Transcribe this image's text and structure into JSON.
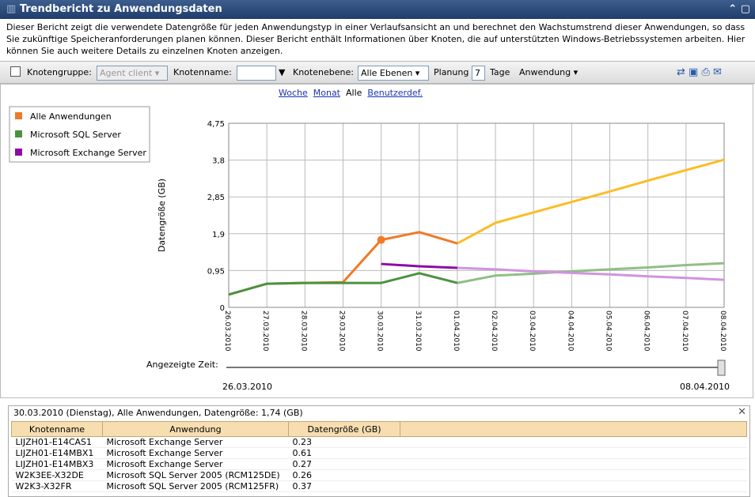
{
  "header": {
    "title": "Trendbericht zu Anwendungsdaten"
  },
  "description": "Dieser Bericht zeigt die verwendete Datengröße für jeden Anwendungstyp in einer Verlaufsansicht an und berechnet den Wachstumstrend dieser Anwendungen, so dass Sie zukünftige  Speicheranforderungen planen können. Dieser Bericht enthält Informationen über Knoten, die auf unterstützten Windows-Betriebssystemen arbeiten. Hier können Sie auch weitere Details zu einzelnen Knoten anzeigen.",
  "toolbar": {
    "group_label": "Knotengruppe:",
    "group_value": "Agent client",
    "node_label": "Knotenname:",
    "level_label": "Knotenebene:",
    "level_value": "Alle Ebenen",
    "planning_label": "Planung",
    "planning_value": "7",
    "days_label": "Tage",
    "application_menu": "Anwendung"
  },
  "range_links": [
    "Woche",
    "Monat",
    "Alle",
    "Benutzerdef."
  ],
  "chart": {
    "type": "line",
    "y_label": "Datengröße (GB)",
    "categories": [
      "26.03.2010",
      "27.03.2010",
      "28.03.2010",
      "29.03.2010",
      "30.03.2010",
      "31.03.2010",
      "01.04.2010",
      "02.04.2010",
      "03.04.2010",
      "04.04.2010",
      "05.04.2010",
      "06.04.2010",
      "07.04.2010",
      "08.04.2010"
    ],
    "series": [
      {
        "name": "Alle Anwendungen",
        "color": "#f07a28",
        "trend_color": "#fbbd26",
        "values": [
          0.33,
          0.61,
          0.63,
          0.65,
          1.74,
          1.94,
          1.65,
          null,
          null,
          null,
          null,
          null,
          null,
          null
        ],
        "trend": [
          null,
          null,
          null,
          null,
          null,
          null,
          1.65,
          2.18,
          2.45,
          2.72,
          2.99,
          3.27,
          3.54,
          3.81
        ]
      },
      {
        "name": "Microsoft SQL Server",
        "color": "#4a9340",
        "trend_color": "#8fbf85",
        "values": [
          0.33,
          0.61,
          0.63,
          0.63,
          0.63,
          0.88,
          0.63,
          null,
          null,
          null,
          null,
          null,
          null,
          null
        ],
        "trend": [
          null,
          null,
          null,
          null,
          null,
          null,
          0.63,
          0.82,
          0.87,
          0.93,
          0.98,
          1.03,
          1.09,
          1.14
        ]
      },
      {
        "name": "Microsoft Exchange Server",
        "color": "#8e0aa8",
        "trend_color": "#d193e0",
        "values": [
          null,
          null,
          null,
          null,
          1.12,
          1.06,
          1.02,
          null,
          null,
          null,
          null,
          null,
          null,
          null
        ],
        "trend": [
          null,
          null,
          null,
          null,
          null,
          null,
          1.02,
          0.98,
          0.93,
          0.89,
          0.85,
          0.8,
          0.76,
          0.71
        ]
      }
    ],
    "marker": {
      "series": 0,
      "index": 4
    },
    "ylim": [
      0,
      4.75
    ],
    "yticks": [
      0,
      {
        "value": 0.95,
        "label": "0,95"
      },
      {
        "value": 1.9,
        "label": "1,9"
      },
      {
        "value": 2.85,
        "label": "2,85"
      },
      {
        "value": 3.8,
        "label": "3,8"
      },
      {
        "value": 4.75,
        "label": "4,75"
      }
    ],
    "grid": true
  },
  "slider": {
    "label": "Angezeigte Zeit:",
    "start": "26.03.2010",
    "end": "08.04.2010"
  },
  "detail": {
    "title": "30.03.2010 (Dienstag), Alle Anwendungen, Datengröße: 1,74 (GB)",
    "columns": [
      "Knotenname",
      "Anwendung",
      "Datengröße (GB)"
    ],
    "rows": [
      [
        "LIJZH01-E14CAS1",
        "Microsoft Exchange Server",
        0.23
      ],
      [
        "LIJZH01-E14MBX1",
        "Microsoft Exchange Server",
        0.61
      ],
      [
        "LIJZH01-E14MBX3",
        "Microsoft Exchange Server",
        0.27
      ],
      [
        "W2K3EE-X32DE",
        "Microsoft SQL Server 2005 (RCM125DE)",
        0.26
      ],
      [
        "W2K3-X32FR",
        "Microsoft SQL Server 2005 (RCM125FR)",
        0.37
      ]
    ]
  }
}
